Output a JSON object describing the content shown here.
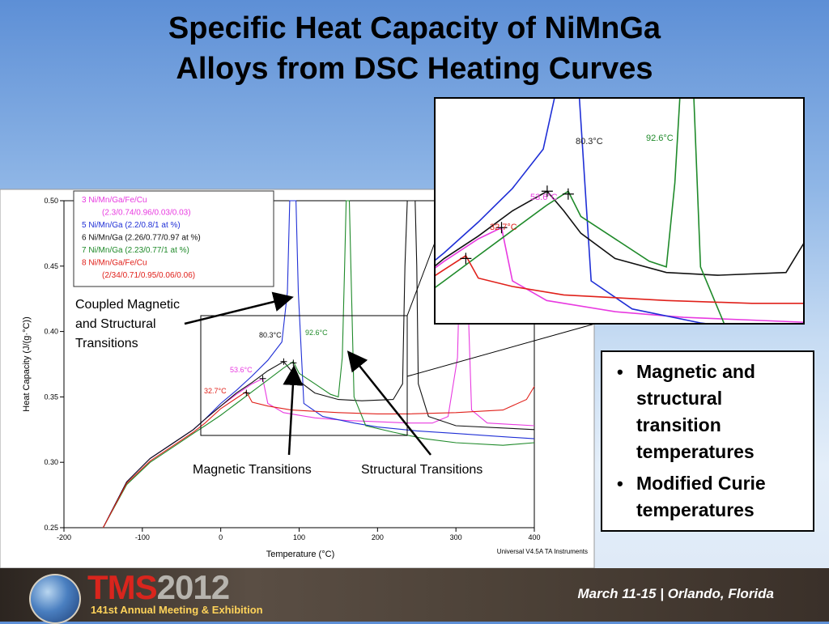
{
  "slide": {
    "title_line1": "Specific Heat Capacity of NiMnGa",
    "title_line2": "Alloys from DSC Heating Curves"
  },
  "bullets": [
    "Magnetic and structural transition temperatures",
    "Modified Curie temperatures"
  ],
  "footer": {
    "logo_text_a": "TMS",
    "logo_text_b": "2012",
    "meeting": "141st Annual Meeting & Exhibition",
    "dates": "March 11-15 | Orlando, Florida"
  },
  "annotations": {
    "coupled": [
      "Coupled Magnetic",
      "and Structural",
      "Transitions"
    ],
    "magnetic": "Magnetic Transitions",
    "structural": "Structural Transitions"
  },
  "colors": {
    "s3": "#e83ae0",
    "s5": "#1f2fd6",
    "s6": "#111111",
    "s7": "#1f8a2a",
    "s8": "#e0201a"
  },
  "chart_data": {
    "type": "line",
    "xlabel": "Temperature (°C)",
    "ylabel": "Heat Capacity (J/(g·°C))",
    "xlim": [
      -200,
      400
    ],
    "ylim": [
      0.25,
      0.5
    ],
    "xticks": [
      "-200",
      "-100",
      "0",
      "100",
      "200",
      "300",
      "400"
    ],
    "yticks": [
      "0.25",
      "0.30",
      "0.35",
      "0.40",
      "0.45",
      "0.50"
    ],
    "watermark": "Universal V4.5A TA Instruments",
    "legend": [
      {
        "num": "3",
        "lines": [
          "Ni/Mn/Ga/Fe/Cu",
          "(2.3/0.74/0.96/0.03/0.03)"
        ],
        "color": "#e83ae0"
      },
      {
        "num": "5",
        "lines": [
          "Ni/Mn/Ga (2.2/0.8/1 at %)"
        ],
        "color": "#1f2fd6"
      },
      {
        "num": "6",
        "lines": [
          "Ni/Mn/Ga (2.26/0.77/0.97 at %)"
        ],
        "color": "#111111"
      },
      {
        "num": "7",
        "lines": [
          "Ni/Mn/Ga (2.23/0.77/1 at %)"
        ],
        "color": "#1f8a2a"
      },
      {
        "num": "8",
        "lines": [
          "Ni/Mn/Ga/Fe/Cu",
          "(2/34/0.71/0.95/0.06/0.06)"
        ],
        "color": "#e0201a"
      }
    ],
    "temperature_labels": [
      {
        "text": "80.3°C",
        "color": "#111111"
      },
      {
        "text": "92.6°C",
        "color": "#1f8a2a"
      },
      {
        "text": "53.6°C",
        "color": "#e83ae0"
      },
      {
        "text": "32.7°C",
        "color": "#e0201a"
      }
    ],
    "inset_labels": [
      {
        "text": "80.3°C",
        "color": "#222222"
      },
      {
        "text": "92.6°C",
        "color": "#1f8a2a"
      },
      {
        "text": "53.6°C",
        "color": "#e83ae0"
      },
      {
        "text": "32.7°C",
        "color": "#e0201a"
      }
    ],
    "series": [
      {
        "key": "s3",
        "name": "3",
        "color": "#e83ae0",
        "points": [
          [
            -150,
            0.25
          ],
          [
            -120,
            0.285
          ],
          [
            -90,
            0.303
          ],
          [
            -60,
            0.315
          ],
          [
            -35,
            0.325
          ],
          [
            -20,
            0.333
          ],
          [
            0,
            0.343
          ],
          [
            20,
            0.352
          ],
          [
            40,
            0.36
          ],
          [
            53.6,
            0.364
          ],
          [
            60,
            0.345
          ],
          [
            80,
            0.338
          ],
          [
            120,
            0.334
          ],
          [
            160,
            0.332
          ],
          [
            200,
            0.331
          ],
          [
            240,
            0.33
          ],
          [
            270,
            0.33
          ],
          [
            290,
            0.335
          ],
          [
            302,
            0.38
          ],
          [
            305,
            0.45
          ],
          [
            308,
            0.5
          ],
          [
            312,
            0.5
          ],
          [
            315,
            0.43
          ],
          [
            320,
            0.34
          ],
          [
            340,
            0.33
          ],
          [
            400,
            0.328
          ]
        ]
      },
      {
        "key": "s5",
        "name": "5",
        "color": "#1f2fd6",
        "points": [
          [
            -150,
            0.25
          ],
          [
            -120,
            0.285
          ],
          [
            -90,
            0.303
          ],
          [
            -60,
            0.315
          ],
          [
            -35,
            0.325
          ],
          [
            -20,
            0.333
          ],
          [
            0,
            0.345
          ],
          [
            20,
            0.355
          ],
          [
            40,
            0.366
          ],
          [
            60,
            0.378
          ],
          [
            78,
            0.392
          ],
          [
            85,
            0.43
          ],
          [
            88,
            0.5
          ],
          [
            96,
            0.5
          ],
          [
            99,
            0.43
          ],
          [
            106,
            0.345
          ],
          [
            130,
            0.335
          ],
          [
            170,
            0.33
          ],
          [
            200,
            0.327
          ],
          [
            250,
            0.324
          ],
          [
            300,
            0.322
          ],
          [
            350,
            0.32
          ],
          [
            400,
            0.318
          ]
        ]
      },
      {
        "key": "s6",
        "name": "6",
        "color": "#111111",
        "points": [
          [
            -150,
            0.25
          ],
          [
            -120,
            0.285
          ],
          [
            -90,
            0.303
          ],
          [
            -60,
            0.315
          ],
          [
            -35,
            0.325
          ],
          [
            -20,
            0.333
          ],
          [
            0,
            0.343
          ],
          [
            20,
            0.353
          ],
          [
            40,
            0.361
          ],
          [
            60,
            0.37
          ],
          [
            80.3,
            0.377
          ],
          [
            90,
            0.37
          ],
          [
            100,
            0.362
          ],
          [
            120,
            0.353
          ],
          [
            150,
            0.348
          ],
          [
            180,
            0.347
          ],
          [
            220,
            0.348
          ],
          [
            232,
            0.36
          ],
          [
            235,
            0.45
          ],
          [
            238,
            0.5
          ],
          [
            248,
            0.5
          ],
          [
            250,
            0.45
          ],
          [
            252,
            0.36
          ],
          [
            265,
            0.335
          ],
          [
            300,
            0.328
          ],
          [
            400,
            0.325
          ]
        ]
      },
      {
        "key": "s7",
        "name": "7",
        "color": "#1f8a2a",
        "points": [
          [
            -150,
            0.25
          ],
          [
            -120,
            0.283
          ],
          [
            -90,
            0.3
          ],
          [
            -60,
            0.312
          ],
          [
            -35,
            0.322
          ],
          [
            -20,
            0.328
          ],
          [
            0,
            0.336
          ],
          [
            20,
            0.345
          ],
          [
            40,
            0.354
          ],
          [
            60,
            0.363
          ],
          [
            80,
            0.372
          ],
          [
            92.6,
            0.377
          ],
          [
            100,
            0.368
          ],
          [
            120,
            0.36
          ],
          [
            140,
            0.352
          ],
          [
            150,
            0.35
          ],
          [
            155,
            0.38
          ],
          [
            158,
            0.45
          ],
          [
            160,
            0.5
          ],
          [
            164,
            0.5
          ],
          [
            166,
            0.45
          ],
          [
            170,
            0.35
          ],
          [
            185,
            0.328
          ],
          [
            220,
            0.323
          ],
          [
            260,
            0.318
          ],
          [
            300,
            0.315
          ],
          [
            360,
            0.313
          ],
          [
            400,
            0.315
          ]
        ]
      },
      {
        "key": "s8",
        "name": "8",
        "color": "#e0201a",
        "points": [
          [
            -150,
            0.25
          ],
          [
            -120,
            0.284
          ],
          [
            -90,
            0.301
          ],
          [
            -60,
            0.313
          ],
          [
            -35,
            0.323
          ],
          [
            -20,
            0.33
          ],
          [
            0,
            0.341
          ],
          [
            20,
            0.349
          ],
          [
            32.7,
            0.354
          ],
          [
            40,
            0.346
          ],
          [
            60,
            0.343
          ],
          [
            90,
            0.34
          ],
          [
            120,
            0.339
          ],
          [
            150,
            0.338
          ],
          [
            200,
            0.337
          ],
          [
            240,
            0.337
          ],
          [
            300,
            0.338
          ],
          [
            360,
            0.34
          ],
          [
            390,
            0.348
          ],
          [
            400,
            0.358
          ]
        ]
      }
    ]
  }
}
